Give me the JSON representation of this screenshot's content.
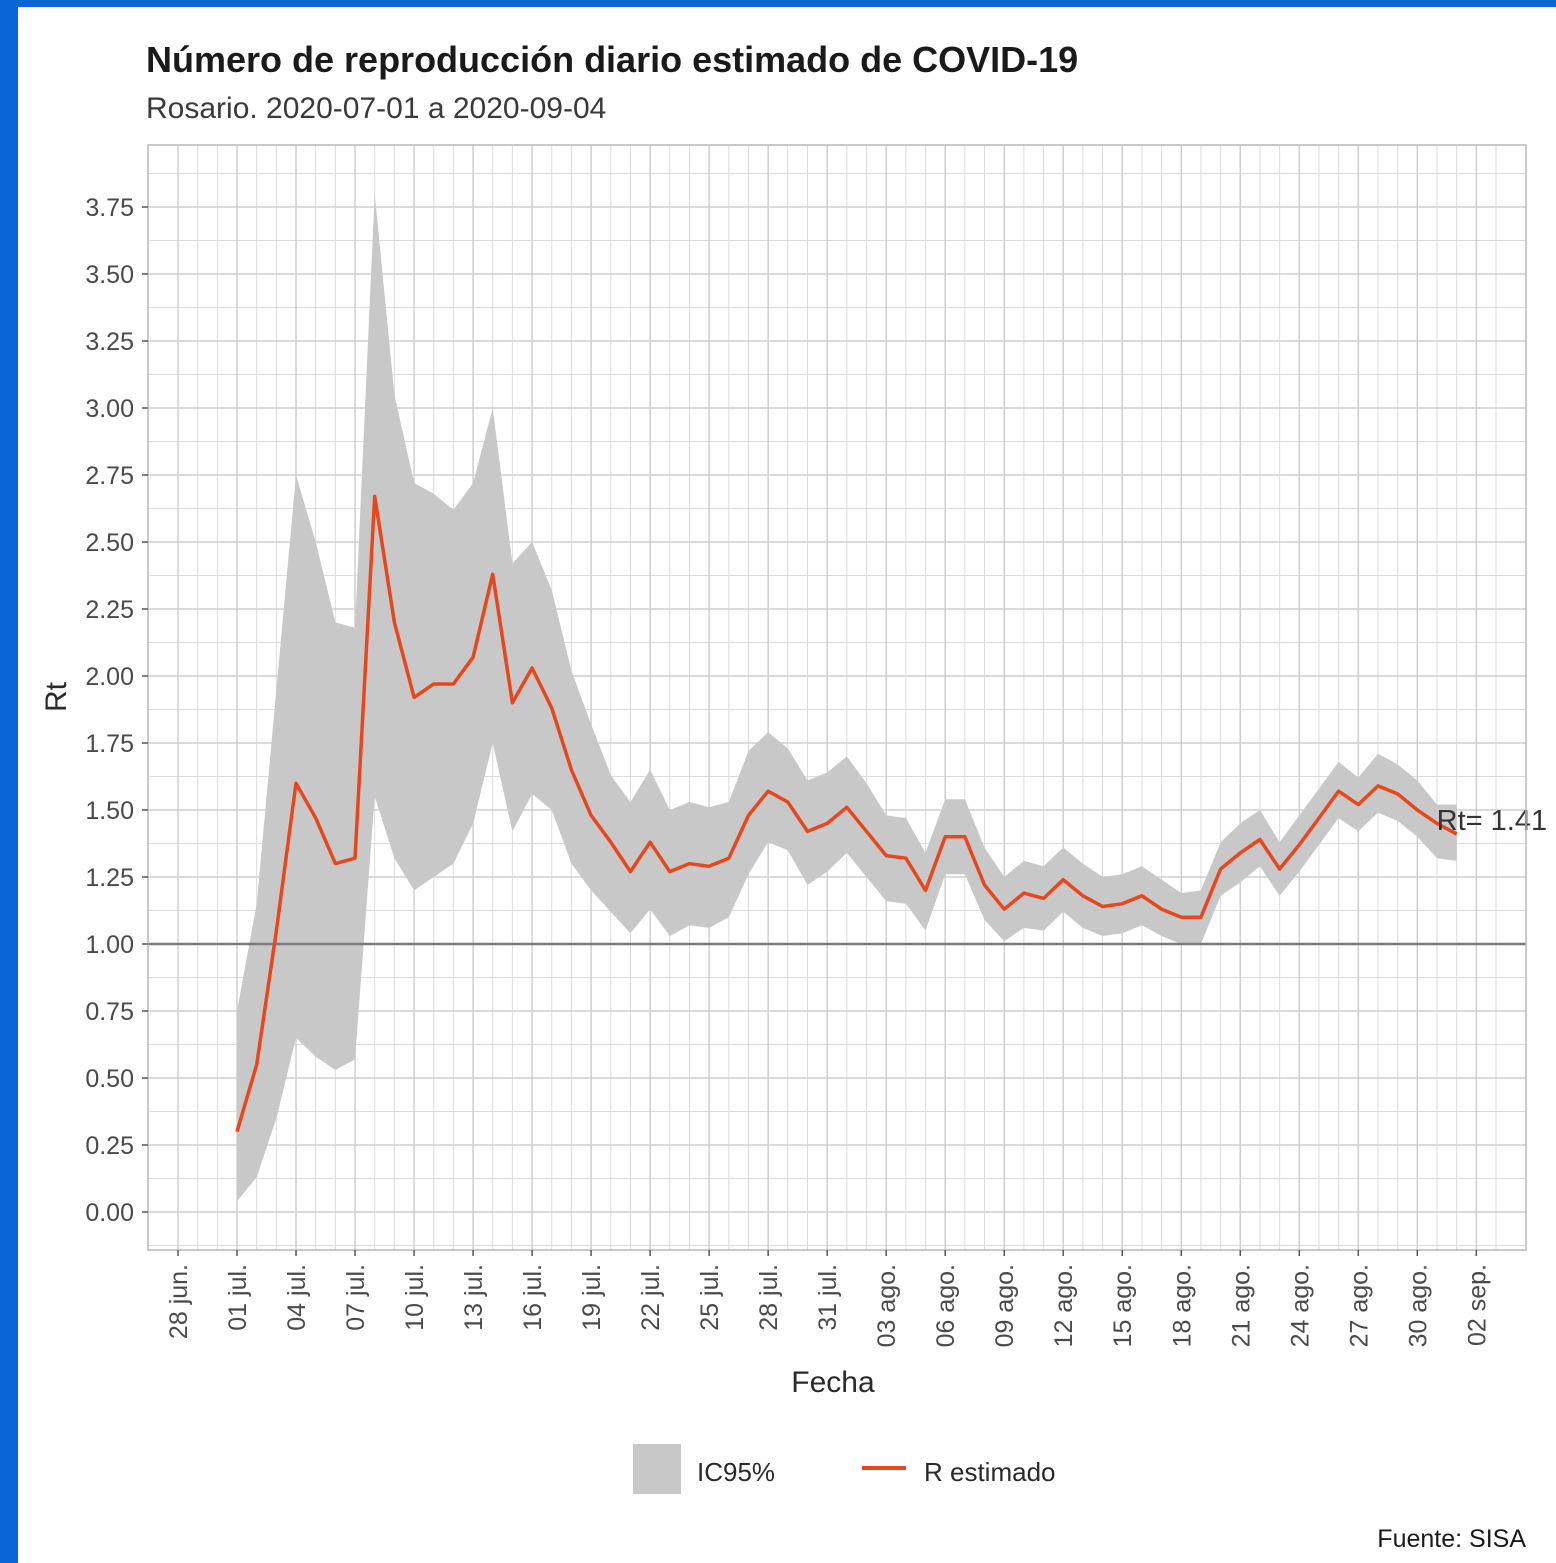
{
  "title": "Número de reproducción diario estimado de COVID-19",
  "subtitle": "Rosario. 2020-07-01 a 2020-09-04",
  "caption": "Fuente: SISA",
  "colors": {
    "line": "#e8471e",
    "ribbon": "#c8c8c8",
    "reference_line": "#7a7a7a",
    "grid": "#dcdcdc",
    "frame": "#8a8a8a",
    "background": "#ffffff",
    "outer_border": "#0a66d6"
  },
  "chart_data": {
    "type": "line",
    "xlabel": "Fecha",
    "ylabel": "Rt",
    "xlim": [
      "2020-06-28",
      "2020-09-03"
    ],
    "ylim": [
      -0.12,
      4.0
    ],
    "grid": true,
    "legend_position": "bottom",
    "x_ticks": [
      {
        "date": "2020-06-28",
        "label": "28 jun."
      },
      {
        "date": "2020-07-01",
        "label": "01 jul."
      },
      {
        "date": "2020-07-04",
        "label": "04 jul."
      },
      {
        "date": "2020-07-07",
        "label": "07 jul."
      },
      {
        "date": "2020-07-10",
        "label": "10 jul."
      },
      {
        "date": "2020-07-13",
        "label": "13 jul."
      },
      {
        "date": "2020-07-16",
        "label": "16 jul."
      },
      {
        "date": "2020-07-19",
        "label": "19 jul."
      },
      {
        "date": "2020-07-22",
        "label": "22 jul."
      },
      {
        "date": "2020-07-25",
        "label": "25 jul."
      },
      {
        "date": "2020-07-28",
        "label": "28 jul."
      },
      {
        "date": "2020-07-31",
        "label": "31 jul."
      },
      {
        "date": "2020-08-03",
        "label": "03 ago."
      },
      {
        "date": "2020-08-06",
        "label": "06 ago."
      },
      {
        "date": "2020-08-09",
        "label": "09 ago."
      },
      {
        "date": "2020-08-12",
        "label": "12 ago."
      },
      {
        "date": "2020-08-15",
        "label": "15 ago."
      },
      {
        "date": "2020-08-18",
        "label": "18 ago."
      },
      {
        "date": "2020-08-21",
        "label": "21 ago."
      },
      {
        "date": "2020-08-24",
        "label": "24 ago."
      },
      {
        "date": "2020-08-27",
        "label": "27 ago."
      },
      {
        "date": "2020-08-30",
        "label": "30 ago."
      },
      {
        "date": "2020-09-02",
        "label": "02 sep."
      }
    ],
    "y_ticks": [
      {
        "value": 0.0,
        "label": "0.00"
      },
      {
        "value": 0.25,
        "label": "0.25"
      },
      {
        "value": 0.5,
        "label": "0.50"
      },
      {
        "value": 0.75,
        "label": "0.75"
      },
      {
        "value": 1.0,
        "label": "1.00"
      },
      {
        "value": 1.25,
        "label": "1.25"
      },
      {
        "value": 1.5,
        "label": "1.50"
      },
      {
        "value": 1.75,
        "label": "1.75"
      },
      {
        "value": 2.0,
        "label": "2.00"
      },
      {
        "value": 2.25,
        "label": "2.25"
      },
      {
        "value": 2.5,
        "label": "2.50"
      },
      {
        "value": 2.75,
        "label": "2.75"
      },
      {
        "value": 3.0,
        "label": "3.00"
      },
      {
        "value": 3.25,
        "label": "3.25"
      },
      {
        "value": 3.5,
        "label": "3.50"
      },
      {
        "value": 3.75,
        "label": "3.75"
      }
    ],
    "reference_line": {
      "y": 1.0
    },
    "legend": [
      {
        "key": "ribbon",
        "label": "IC95%"
      },
      {
        "key": "line",
        "label": "R estimado"
      }
    ],
    "annotation": {
      "text": "Rt= 1.41",
      "date": "2020-09-01",
      "y": 1.41
    },
    "series": [
      {
        "name": "R estimado",
        "dates": [
          "2020-07-01",
          "2020-07-02",
          "2020-07-03",
          "2020-07-04",
          "2020-07-05",
          "2020-07-06",
          "2020-07-07",
          "2020-07-08",
          "2020-07-09",
          "2020-07-10",
          "2020-07-11",
          "2020-07-12",
          "2020-07-13",
          "2020-07-14",
          "2020-07-15",
          "2020-07-16",
          "2020-07-17",
          "2020-07-18",
          "2020-07-19",
          "2020-07-20",
          "2020-07-21",
          "2020-07-22",
          "2020-07-23",
          "2020-07-24",
          "2020-07-25",
          "2020-07-26",
          "2020-07-27",
          "2020-07-28",
          "2020-07-29",
          "2020-07-30",
          "2020-07-31",
          "2020-08-01",
          "2020-08-02",
          "2020-08-03",
          "2020-08-04",
          "2020-08-05",
          "2020-08-06",
          "2020-08-07",
          "2020-08-08",
          "2020-08-09",
          "2020-08-10",
          "2020-08-11",
          "2020-08-12",
          "2020-08-13",
          "2020-08-14",
          "2020-08-15",
          "2020-08-16",
          "2020-08-17",
          "2020-08-18",
          "2020-08-19",
          "2020-08-20",
          "2020-08-21",
          "2020-08-22",
          "2020-08-23",
          "2020-08-24",
          "2020-08-25",
          "2020-08-26",
          "2020-08-27",
          "2020-08-28",
          "2020-08-29",
          "2020-08-30",
          "2020-08-31",
          "2020-09-01"
        ],
        "values": [
          0.3,
          0.55,
          1.05,
          1.6,
          1.47,
          1.3,
          1.32,
          2.67,
          2.2,
          1.92,
          1.97,
          1.97,
          2.07,
          2.38,
          1.9,
          2.03,
          1.88,
          1.65,
          1.48,
          1.38,
          1.27,
          1.38,
          1.27,
          1.3,
          1.29,
          1.32,
          1.48,
          1.57,
          1.53,
          1.42,
          1.45,
          1.51,
          1.42,
          1.33,
          1.32,
          1.2,
          1.4,
          1.4,
          1.22,
          1.13,
          1.19,
          1.17,
          1.24,
          1.18,
          1.14,
          1.15,
          1.18,
          1.13,
          1.1,
          1.1,
          1.28,
          1.34,
          1.39,
          1.28,
          1.37,
          1.47,
          1.57,
          1.52,
          1.59,
          1.56,
          1.5,
          1.45,
          1.41
        ]
      },
      {
        "name": "IC95%",
        "dates": [
          "2020-07-01",
          "2020-07-02",
          "2020-07-03",
          "2020-07-04",
          "2020-07-05",
          "2020-07-06",
          "2020-07-07",
          "2020-07-08",
          "2020-07-09",
          "2020-07-10",
          "2020-07-11",
          "2020-07-12",
          "2020-07-13",
          "2020-07-14",
          "2020-07-15",
          "2020-07-16",
          "2020-07-17",
          "2020-07-18",
          "2020-07-19",
          "2020-07-20",
          "2020-07-21",
          "2020-07-22",
          "2020-07-23",
          "2020-07-24",
          "2020-07-25",
          "2020-07-26",
          "2020-07-27",
          "2020-07-28",
          "2020-07-29",
          "2020-07-30",
          "2020-07-31",
          "2020-08-01",
          "2020-08-02",
          "2020-08-03",
          "2020-08-04",
          "2020-08-05",
          "2020-08-06",
          "2020-08-07",
          "2020-08-08",
          "2020-08-09",
          "2020-08-10",
          "2020-08-11",
          "2020-08-12",
          "2020-08-13",
          "2020-08-14",
          "2020-08-15",
          "2020-08-16",
          "2020-08-17",
          "2020-08-18",
          "2020-08-19",
          "2020-08-20",
          "2020-08-21",
          "2020-08-22",
          "2020-08-23",
          "2020-08-24",
          "2020-08-25",
          "2020-08-26",
          "2020-08-27",
          "2020-08-28",
          "2020-08-29",
          "2020-08-30",
          "2020-08-31",
          "2020-09-01"
        ],
        "lower": [
          0.04,
          0.13,
          0.35,
          0.65,
          0.58,
          0.53,
          0.57,
          1.55,
          1.32,
          1.2,
          1.25,
          1.3,
          1.45,
          1.75,
          1.42,
          1.56,
          1.5,
          1.3,
          1.2,
          1.12,
          1.04,
          1.13,
          1.03,
          1.07,
          1.06,
          1.1,
          1.26,
          1.38,
          1.35,
          1.22,
          1.27,
          1.34,
          1.25,
          1.16,
          1.15,
          1.05,
          1.26,
          1.26,
          1.09,
          1.01,
          1.06,
          1.05,
          1.12,
          1.06,
          1.03,
          1.04,
          1.07,
          1.03,
          1.0,
          1.0,
          1.18,
          1.23,
          1.29,
          1.18,
          1.27,
          1.37,
          1.47,
          1.42,
          1.49,
          1.46,
          1.4,
          1.32,
          1.31
        ],
        "upper": [
          0.75,
          1.15,
          1.95,
          2.75,
          2.5,
          2.2,
          2.18,
          3.8,
          3.05,
          2.72,
          2.68,
          2.62,
          2.72,
          3.0,
          2.42,
          2.5,
          2.32,
          2.02,
          1.82,
          1.63,
          1.53,
          1.65,
          1.5,
          1.53,
          1.51,
          1.53,
          1.72,
          1.79,
          1.73,
          1.61,
          1.64,
          1.7,
          1.6,
          1.48,
          1.47,
          1.34,
          1.54,
          1.54,
          1.36,
          1.25,
          1.31,
          1.29,
          1.36,
          1.3,
          1.25,
          1.26,
          1.29,
          1.24,
          1.19,
          1.2,
          1.38,
          1.45,
          1.5,
          1.38,
          1.48,
          1.58,
          1.68,
          1.62,
          1.71,
          1.67,
          1.61,
          1.52,
          1.52
        ]
      }
    ]
  }
}
